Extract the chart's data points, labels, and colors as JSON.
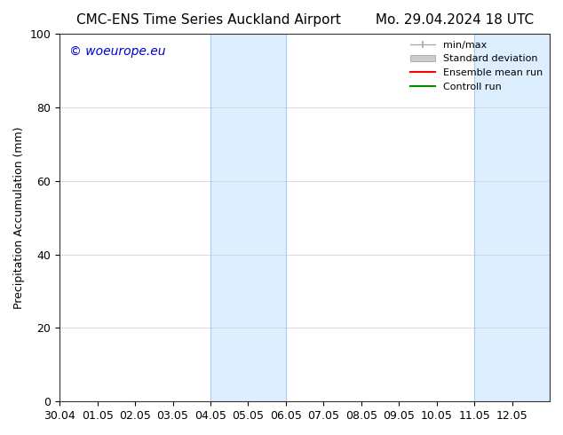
{
  "title_left": "CMC-ENS Time Series Auckland Airport",
  "title_right": "Mo. 29.04.2024 18 UTC",
  "ylabel": "Precipitation Accumulation (mm)",
  "watermark": "© woeurope.eu",
  "watermark_color": "#0000cc",
  "ylim": [
    0,
    100
  ],
  "yticks": [
    0,
    20,
    40,
    60,
    80,
    100
  ],
  "xlim": [
    0,
    13
  ],
  "x_tick_positions": [
    0,
    1,
    2,
    3,
    4,
    5,
    6,
    7,
    8,
    9,
    10,
    11,
    12
  ],
  "x_tick_labels": [
    "30.04",
    "01.05",
    "02.05",
    "03.05",
    "04.05",
    "05.05",
    "06.05",
    "07.05",
    "08.05",
    "09.05",
    "10.05",
    "11.05",
    "12.05"
  ],
  "shaded_regions": [
    {
      "x_start": 4,
      "x_end": 6
    },
    {
      "x_start": 11,
      "x_end": 13
    }
  ],
  "shade_color": "#ddeeff",
  "shade_edge_color": "#aaccee",
  "legend_entries": [
    {
      "label": "min/max",
      "color": "#aaaaaa",
      "lw": 1
    },
    {
      "label": "Standard deviation",
      "color": "#cccccc",
      "lw": 6
    },
    {
      "label": "Ensemble mean run",
      "color": "#ff0000",
      "lw": 1.5
    },
    {
      "label": "Controll run",
      "color": "#008800",
      "lw": 1.5
    }
  ],
  "background_color": "#ffffff",
  "font_size_title": 11,
  "font_size_axis": 9,
  "font_size_legend": 8,
  "font_size_watermark": 10
}
